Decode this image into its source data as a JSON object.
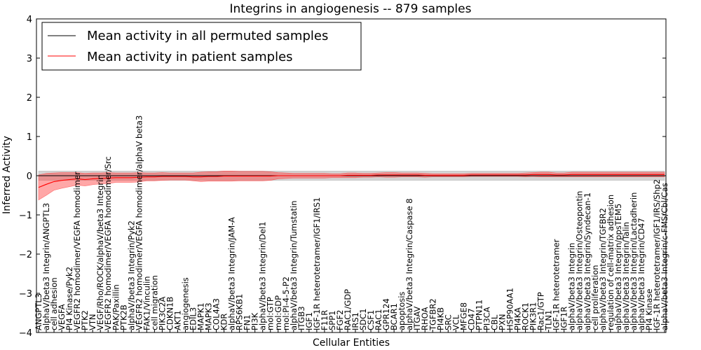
{
  "chart_data": {
    "type": "line",
    "title": "Integrins in angiogenesis -- 879 samples",
    "xlabel": "Cellular Entities",
    "ylabel": "Inferred Activity",
    "ylim": [
      -4,
      4
    ],
    "yticks": [
      -4,
      -3,
      -2,
      -1,
      0,
      1,
      2,
      3,
      4
    ],
    "grid": false,
    "legend_position": "top-left",
    "categories": [
      "ANGPTL3",
      "alphaV/beta3 Integrin/ANGPTL3",
      "cell adhesion",
      "VEGFA",
      "PI4 Kinase/Pyk2",
      "VEGFR2 homodimer/VEGFA homodimer",
      "PTK2",
      "VTN",
      "VEGF/Rho/ROCK/alphaV/beta3 Integrin",
      "VEGFR2 homodimer/VEGFA homodimer/Src",
      "PAK/Paxillin",
      "PTK2B",
      "alphaV/beta3 Integrin/Pyk2",
      "VEGFR2 homodimer/VEGFA homodimer/alphaV beta3",
      "FAK1/Vinculin",
      "cell migration",
      "PIK3C2A",
      "CDKN1B",
      "AKT1",
      "angiogenesis",
      "EDIL3",
      "MAPK1",
      "MAPK3",
      "COL4A3",
      "KDR",
      "alphaV/beta3 Integrin/JAM-A",
      "RPS6KB1",
      "FN1",
      "PI3K",
      "alphaV/beta3 Integrin/Del1",
      "mol:GTP",
      "mol:GDP",
      "mol:PI-4-5-P2",
      "alphaV/beta3 Integrin/Tumstatin",
      "ITGB3",
      "IGF1",
      "IGF-1R heterotetramer/IGF1/IRS1",
      "F11R",
      "SPP1",
      "FGF2",
      "RAC1/GDP",
      "IRS1",
      "SDC1",
      "CSF1",
      "RAC1",
      "GPR124",
      "BCAR1",
      "apoptosis",
      "alphaV/beta3 Integrin/Caspase 8",
      "ITGAV",
      "RHOA",
      "TGFBR2",
      "PI4KB",
      "SRC",
      "VCL",
      "MFGE8",
      "CD47",
      "PTPN11",
      "PI3CA",
      "CBL",
      "PXN",
      "HSP90AA1",
      "PI4KA",
      "ROCK1",
      "PIK3R1",
      "Rac1/GTP",
      "TLN1",
      "IGF-1R heterotetramer",
      "IGF1R",
      "alphaV/beta3 Integrin",
      "alphaV/beta3 Integrin/Osteopontin",
      "alphaV/beta3 Integrin/Syndecan-1",
      "cell proliferation",
      "alphaV/beta3 Integrin/TGFBR2",
      "regulation of cell-matrix adhesion",
      "alphaV/beta3 Integrin/ppsTEM5",
      "alphaV/beta3 Integrin/Talin",
      "alphaV/beta3 Integrin/Lactadherin",
      "alphaV/beta3 Integrin/CD47",
      "PI4 Kinase",
      "IGF-1R heterotetramer/IGF1/IRS/Shp2",
      "alphaV/beta3 Integrin/c-FMS/Cbl/Cas"
    ],
    "series": [
      {
        "name": "Mean activity in all permuted samples",
        "color": "#000000",
        "band_color": "#b0b0b0",
        "mean": [
          0,
          0,
          0,
          0,
          0,
          0,
          0,
          0,
          0,
          0,
          0,
          0,
          0,
          0,
          0,
          0,
          0,
          0,
          0,
          0,
          0,
          0,
          0,
          0,
          0,
          0,
          0,
          0,
          0,
          0,
          0,
          0,
          0,
          0,
          0,
          0,
          0,
          0,
          0,
          0,
          0,
          0,
          0,
          0,
          0,
          0,
          0,
          0,
          0,
          0,
          0,
          0,
          0,
          0,
          0,
          0,
          0,
          0,
          0,
          0,
          0,
          0,
          0,
          0,
          0,
          0,
          0,
          0,
          0,
          0,
          0,
          0,
          0,
          0,
          0,
          0,
          0,
          0,
          0,
          0,
          0,
          0
        ],
        "spread": 0.12
      },
      {
        "name": "Mean activity in patient samples",
        "color": "#ff0000",
        "band_color": "#ff3b3b",
        "mean": [
          -0.3,
          -0.22,
          -0.15,
          -0.12,
          -0.1,
          -0.08,
          -0.1,
          -0.08,
          -0.07,
          -0.06,
          -0.05,
          -0.05,
          -0.05,
          -0.04,
          -0.03,
          -0.03,
          -0.02,
          -0.02,
          -0.02,
          -0.02,
          -0.03,
          -0.03,
          -0.02,
          -0.02,
          -0.01,
          -0.01,
          -0.01,
          -0.01,
          -0.01,
          -0.01,
          -0.01,
          0,
          0,
          0,
          0,
          0,
          0,
          0,
          0,
          0,
          0.01,
          0.01,
          0.01,
          0.01,
          0.02,
          0.02,
          0.02,
          0.02,
          0.02,
          0.02,
          0.01,
          0.01,
          0.01,
          0.01,
          0.01,
          0.01,
          0.02,
          0.02,
          0.02,
          0.02,
          0.02,
          0.02,
          0.02,
          0.02,
          0.03,
          0.03,
          0.03,
          0.02,
          0.02,
          0.03,
          0.03,
          0.03,
          0.03,
          0.03,
          0.03,
          0.03,
          0.03,
          0.03,
          0.03,
          0.03,
          0.03,
          0.03
        ],
        "spread": [
          0.32,
          0.28,
          0.22,
          0.2,
          0.18,
          0.16,
          0.16,
          0.15,
          0.14,
          0.14,
          0.12,
          0.12,
          0.12,
          0.12,
          0.1,
          0.1,
          0.1,
          0.09,
          0.09,
          0.09,
          0.1,
          0.12,
          0.12,
          0.12,
          0.13,
          0.13,
          0.12,
          0.12,
          0.12,
          0.12,
          0.11,
          0.08,
          0.07,
          0.06,
          0.06,
          0.06,
          0.06,
          0.06,
          0.05,
          0.05,
          0.06,
          0.06,
          0.05,
          0.05,
          0.05,
          0.06,
          0.06,
          0.05,
          0.05,
          0.05,
          0.05,
          0.04,
          0.04,
          0.04,
          0.04,
          0.04,
          0.04,
          0.04,
          0.04,
          0.04,
          0.04,
          0.04,
          0.04,
          0.05,
          0.05,
          0.06,
          0.06,
          0.05,
          0.05,
          0.06,
          0.06,
          0.06,
          0.06,
          0.06,
          0.06,
          0.06,
          0.06,
          0.06,
          0.06,
          0.06,
          0.06,
          0.06
        ]
      }
    ]
  }
}
